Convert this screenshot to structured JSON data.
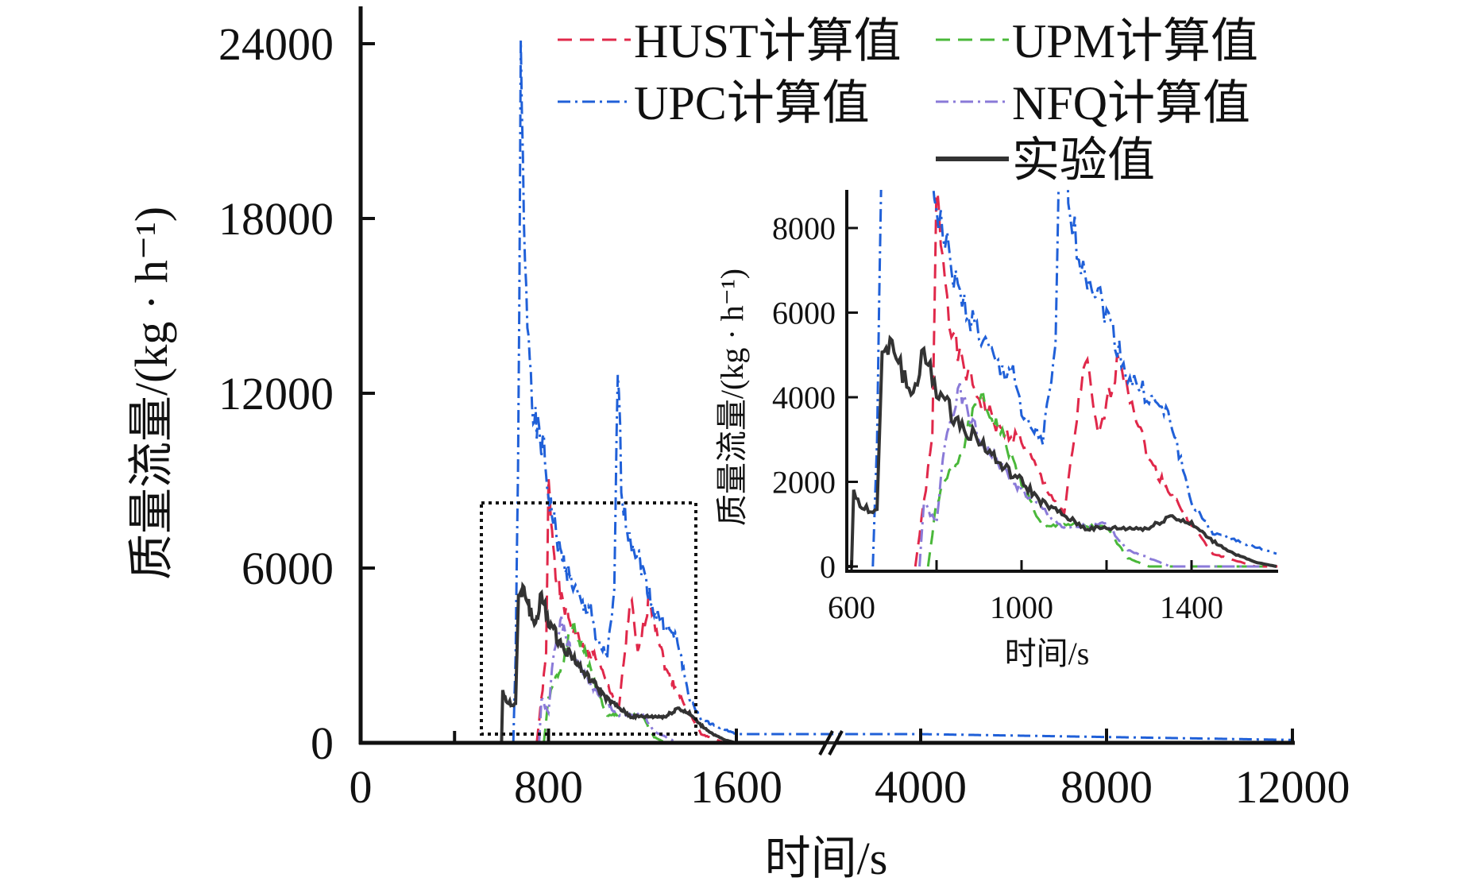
{
  "chart_data": {
    "type": "line",
    "xlabel": "时间/s",
    "ylabel": "质量流量/(kg · h⁻¹)",
    "ylim": [
      0,
      24000
    ],
    "yticks": [
      "0",
      "6000",
      "12000",
      "18000",
      "24000"
    ],
    "xticks": [
      "0",
      "800",
      "1600",
      "4000",
      "8000",
      "12000"
    ],
    "x_axis_break": "between 1600 and 4000",
    "legend_position": "top-right",
    "series": [
      {
        "name": "HUST计算值",
        "color": "#e0284a",
        "style": "dashed",
        "points": [
          [
            750,
            0
          ],
          [
            790,
            3000
          ],
          [
            800,
            8800
          ],
          [
            830,
            6000
          ],
          [
            850,
            5000
          ],
          [
            900,
            4000
          ],
          [
            950,
            3200
          ],
          [
            1000,
            3000
          ],
          [
            1050,
            2000
          ],
          [
            1100,
            1200
          ],
          [
            1150,
            5000
          ],
          [
            1180,
            3000
          ],
          [
            1230,
            5000
          ],
          [
            1300,
            2500
          ],
          [
            1400,
            1000
          ],
          [
            1450,
            300
          ],
          [
            1550,
            0
          ],
          [
            12000,
            0
          ]
        ]
      },
      {
        "name": "UPM计算值",
        "color": "#4ab83a",
        "style": "dashed",
        "points": [
          [
            780,
            0
          ],
          [
            800,
            1500
          ],
          [
            830,
            2200
          ],
          [
            850,
            2500
          ],
          [
            900,
            4000
          ],
          [
            950,
            3200
          ],
          [
            1000,
            2000
          ],
          [
            1050,
            900
          ],
          [
            1100,
            1000
          ],
          [
            1200,
            900
          ],
          [
            1250,
            200
          ],
          [
            1300,
            0
          ],
          [
            12000,
            0
          ]
        ]
      },
      {
        "name": "UPC计算值",
        "color": "#2060d8",
        "style": "dashdot",
        "points": [
          [
            650,
            0
          ],
          [
            660,
            3000
          ],
          [
            670,
            9000
          ],
          [
            682,
            23000
          ],
          [
            700,
            16000
          ],
          [
            740,
            11000
          ],
          [
            780,
            10000
          ],
          [
            800,
            8500
          ],
          [
            850,
            6500
          ],
          [
            900,
            5500
          ],
          [
            950,
            4600
          ],
          [
            980,
            4700
          ],
          [
            1000,
            3500
          ],
          [
            1050,
            3000
          ],
          [
            1080,
            5000
          ],
          [
            1095,
            13000
          ],
          [
            1110,
            9000
          ],
          [
            1130,
            7500
          ],
          [
            1200,
            6000
          ],
          [
            1250,
            4500
          ],
          [
            1300,
            4000
          ],
          [
            1350,
            3500
          ],
          [
            1400,
            1500
          ],
          [
            1450,
            800
          ],
          [
            1600,
            300
          ],
          [
            4000,
            300
          ],
          [
            8000,
            200
          ],
          [
            12000,
            100
          ]
        ]
      },
      {
        "name": "NFQ计算值",
        "color": "#8a7ad8",
        "style": "dashdot",
        "points": [
          [
            760,
            0
          ],
          [
            770,
            1500
          ],
          [
            800,
            1000
          ],
          [
            820,
            3000
          ],
          [
            850,
            4200
          ],
          [
            900,
            3000
          ],
          [
            1000,
            1800
          ],
          [
            1100,
            900
          ],
          [
            1200,
            1000
          ],
          [
            1250,
            400
          ],
          [
            1350,
            0
          ],
          [
            12000,
            0
          ]
        ]
      },
      {
        "name": "实验值",
        "color": "#333333",
        "style": "solid",
        "points": [
          [
            0,
            0
          ],
          [
            600,
            0
          ],
          [
            605,
            1800
          ],
          [
            620,
            1400
          ],
          [
            660,
            1300
          ],
          [
            672,
            5000
          ],
          [
            700,
            5200
          ],
          [
            740,
            4000
          ],
          [
            770,
            5000
          ],
          [
            800,
            4200
          ],
          [
            850,
            3400
          ],
          [
            900,
            3000
          ],
          [
            950,
            2400
          ],
          [
            1000,
            2000
          ],
          [
            1050,
            1500
          ],
          [
            1100,
            1200
          ],
          [
            1150,
            900
          ],
          [
            1200,
            900
          ],
          [
            1300,
            900
          ],
          [
            1350,
            1200
          ],
          [
            1400,
            1000
          ],
          [
            1450,
            600
          ],
          [
            1500,
            300
          ],
          [
            1550,
            100
          ],
          [
            1600,
            0
          ],
          [
            12000,
            0
          ]
        ]
      }
    ],
    "inset": {
      "xlabel": "时间/s",
      "ylabel": "质量流量/(kg · h⁻¹)",
      "xlim": [
        600,
        1600
      ],
      "ylim": [
        0,
        8900
      ],
      "xticks": [
        "600",
        "1000",
        "1400"
      ],
      "yticks": [
        "0",
        "2000",
        "4000",
        "6000",
        "8000"
      ]
    }
  }
}
